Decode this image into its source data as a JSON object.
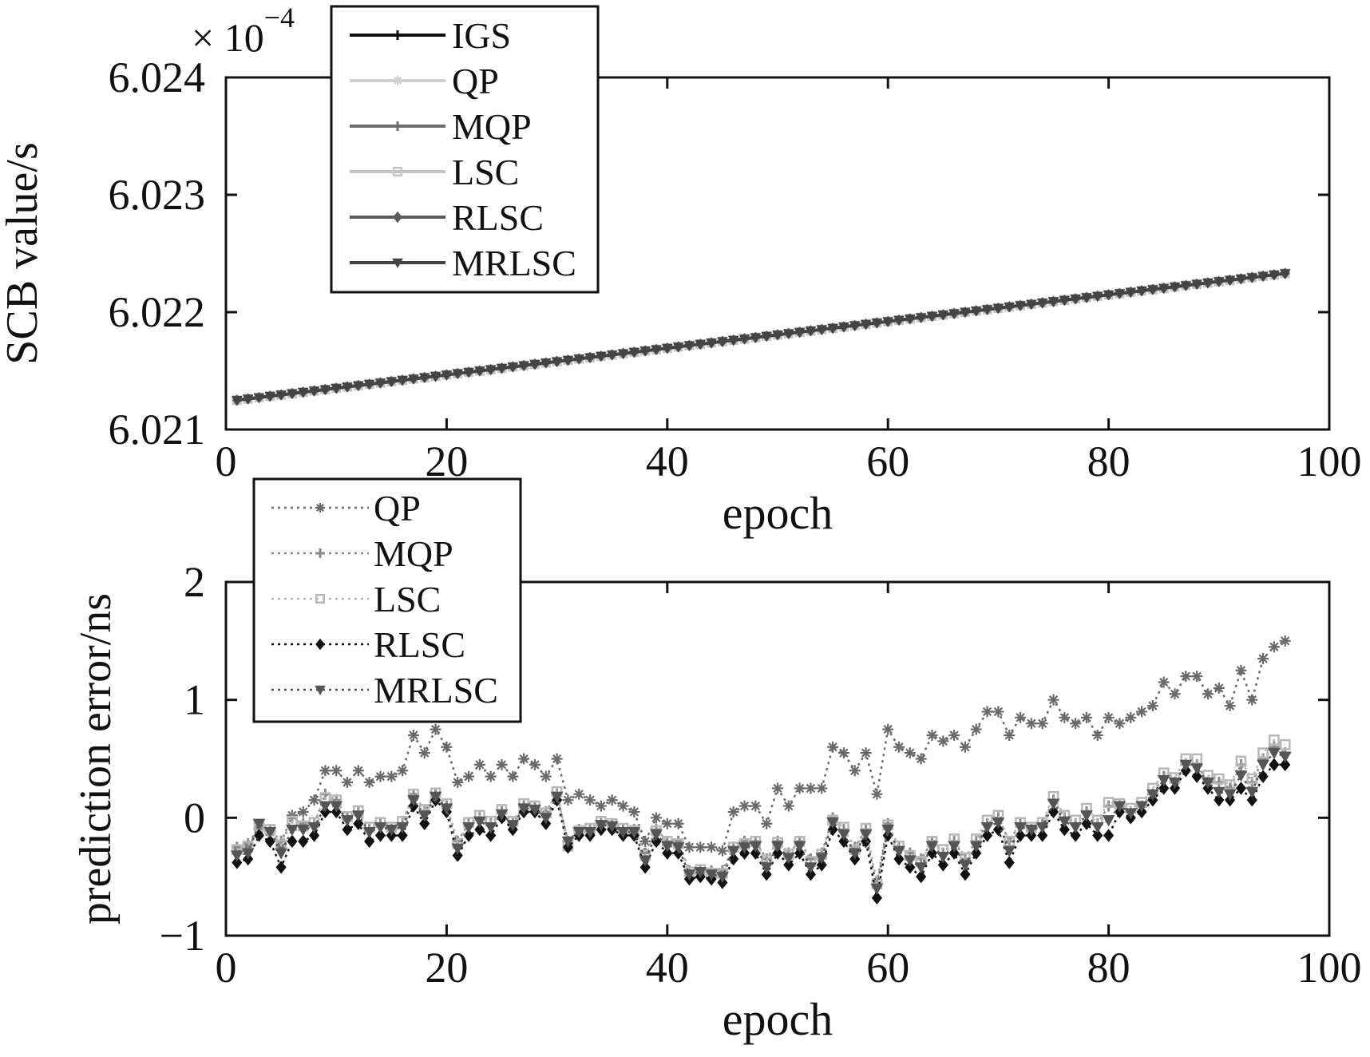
{
  "chart_data": [
    {
      "type": "line",
      "xlabel": "epoch",
      "ylabel": "SCB value/s",
      "exponent": {
        "base": "× 10",
        "power": "−4"
      },
      "xlim": [
        0,
        100
      ],
      "ylim": [
        6.021,
        6.024
      ],
      "xticks": [
        "0",
        "20",
        "40",
        "60",
        "80",
        "100"
      ],
      "yticks": [
        "6.021",
        "6.022",
        "6.023",
        "6.024"
      ],
      "grid": false,
      "legend_position": "top-left",
      "x": [
        1,
        96
      ],
      "series": [
        {
          "name": "IGS",
          "color": "#111111",
          "marker": "plus",
          "values": [
            6.02125,
            6.02233
          ]
        },
        {
          "name": "QP",
          "color": "#cfcfcf",
          "marker": "star",
          "values": [
            6.02125,
            6.02233
          ]
        },
        {
          "name": "MQP",
          "color": "#6e6e6e",
          "marker": "plus",
          "values": [
            6.02125,
            6.02233
          ]
        },
        {
          "name": "LSC",
          "color": "#c4c4c4",
          "marker": "square",
          "values": [
            6.02125,
            6.02233
          ]
        },
        {
          "name": "RLSC",
          "color": "#5a5a5a",
          "marker": "diamond",
          "values": [
            6.02125,
            6.02233
          ]
        },
        {
          "name": "MRLSC",
          "color": "#444444",
          "marker": "triangle",
          "values": [
            6.02125,
            6.02233
          ]
        }
      ]
    },
    {
      "type": "line",
      "xlabel": "epoch",
      "ylabel": "prediction error/ns",
      "xlim": [
        0,
        100
      ],
      "ylim": [
        -1,
        2
      ],
      "xticks": [
        "0",
        "20",
        "40",
        "60",
        "80",
        "100"
      ],
      "yticks": [
        "−1",
        "0",
        "1",
        "2"
      ],
      "grid": false,
      "legend_position": "top-left",
      "x": [
        1,
        2,
        3,
        4,
        5,
        6,
        7,
        8,
        9,
        10,
        11,
        12,
        13,
        14,
        15,
        16,
        17,
        18,
        19,
        20,
        21,
        22,
        23,
        24,
        25,
        26,
        27,
        28,
        29,
        30,
        31,
        32,
        33,
        34,
        35,
        36,
        37,
        38,
        39,
        40,
        41,
        42,
        43,
        44,
        45,
        46,
        47,
        48,
        49,
        50,
        51,
        52,
        53,
        54,
        55,
        56,
        57,
        58,
        59,
        60,
        61,
        62,
        63,
        64,
        65,
        66,
        67,
        68,
        69,
        70,
        71,
        72,
        73,
        74,
        75,
        76,
        77,
        78,
        79,
        80,
        81,
        82,
        83,
        84,
        85,
        86,
        87,
        88,
        89,
        90,
        91,
        92,
        93,
        94,
        95,
        96
      ],
      "series": [
        {
          "name": "QP",
          "color": "#6a6a6a",
          "marker": "star",
          "values": [
            -0.28,
            -0.25,
            -0.1,
            -0.12,
            -0.25,
            0.02,
            0.05,
            0.15,
            0.4,
            0.4,
            0.3,
            0.4,
            0.3,
            0.35,
            0.35,
            0.4,
            0.7,
            0.55,
            0.75,
            0.6,
            0.3,
            0.35,
            0.45,
            0.35,
            0.45,
            0.35,
            0.5,
            0.45,
            0.35,
            0.5,
            0.15,
            0.2,
            0.15,
            0.1,
            0.15,
            0.1,
            0.05,
            -0.2,
            0.0,
            -0.05,
            -0.05,
            -0.25,
            -0.25,
            -0.25,
            -0.28,
            0.05,
            0.1,
            0.1,
            -0.05,
            0.25,
            0.1,
            0.25,
            0.25,
            0.25,
            0.6,
            0.55,
            0.4,
            0.55,
            0.2,
            0.75,
            0.6,
            0.55,
            0.5,
            0.7,
            0.65,
            0.7,
            0.6,
            0.75,
            0.9,
            0.9,
            0.7,
            0.85,
            0.8,
            0.8,
            1.0,
            0.85,
            0.8,
            0.85,
            0.7,
            0.85,
            0.8,
            0.85,
            0.9,
            0.95,
            1.15,
            1.05,
            1.2,
            1.2,
            1.05,
            1.1,
            0.95,
            1.25,
            1.0,
            1.35,
            1.45,
            1.5
          ]
        },
        {
          "name": "MQP",
          "color": "#8a8a8a",
          "marker": "plus",
          "values": [
            -0.25,
            -0.22,
            -0.08,
            -0.1,
            -0.2,
            0.0,
            -0.05,
            -0.05,
            0.2,
            0.15,
            0.0,
            0.05,
            -0.1,
            -0.05,
            -0.1,
            -0.05,
            0.2,
            0.05,
            0.2,
            0.1,
            -0.2,
            -0.05,
            0.0,
            -0.05,
            0.05,
            -0.05,
            0.1,
            0.1,
            0.05,
            0.2,
            -0.2,
            -0.1,
            -0.1,
            -0.05,
            -0.05,
            -0.1,
            -0.1,
            -0.3,
            -0.1,
            -0.2,
            -0.2,
            -0.45,
            -0.45,
            -0.45,
            -0.45,
            -0.25,
            -0.2,
            -0.2,
            -0.35,
            -0.2,
            -0.3,
            -0.2,
            -0.35,
            -0.3,
            0.0,
            -0.1,
            -0.25,
            -0.1,
            -0.55,
            -0.05,
            -0.25,
            -0.3,
            -0.35,
            -0.2,
            -0.3,
            -0.2,
            -0.35,
            -0.2,
            -0.05,
            0.0,
            -0.2,
            -0.05,
            -0.1,
            -0.05,
            0.15,
            0.0,
            -0.05,
            0.05,
            -0.05,
            0.1,
            0.1,
            0.05,
            0.1,
            0.2,
            0.35,
            0.3,
            0.45,
            0.45,
            0.3,
            0.3,
            0.25,
            0.45,
            0.3,
            0.5,
            0.6,
            0.55
          ]
        },
        {
          "name": "LSC",
          "color": "#b8b8b8",
          "marker": "square",
          "values": [
            -0.27,
            -0.24,
            -0.07,
            -0.1,
            -0.23,
            -0.03,
            -0.07,
            -0.04,
            0.17,
            0.15,
            0.01,
            0.06,
            -0.08,
            -0.04,
            -0.08,
            -0.03,
            0.2,
            0.07,
            0.21,
            0.12,
            -0.22,
            -0.04,
            0.02,
            -0.03,
            0.07,
            -0.03,
            0.12,
            0.1,
            0.04,
            0.22,
            -0.24,
            -0.11,
            -0.09,
            -0.03,
            -0.05,
            -0.09,
            -0.11,
            -0.32,
            -0.11,
            -0.2,
            -0.22,
            -0.46,
            -0.44,
            -0.47,
            -0.47,
            -0.25,
            -0.22,
            -0.2,
            -0.36,
            -0.21,
            -0.31,
            -0.2,
            -0.37,
            -0.31,
            -0.02,
            -0.08,
            -0.27,
            -0.09,
            -0.56,
            -0.06,
            -0.24,
            -0.32,
            -0.37,
            -0.2,
            -0.27,
            -0.18,
            -0.34,
            -0.18,
            -0.02,
            0.02,
            -0.2,
            -0.04,
            -0.08,
            -0.04,
            0.18,
            0.02,
            -0.02,
            0.08,
            -0.02,
            0.13,
            0.12,
            0.08,
            0.13,
            0.25,
            0.38,
            0.34,
            0.5,
            0.5,
            0.36,
            0.33,
            0.28,
            0.48,
            0.33,
            0.55,
            0.66,
            0.62
          ]
        },
        {
          "name": "RLSC",
          "color": "#111111",
          "marker": "diamond",
          "values": [
            -0.38,
            -0.35,
            -0.15,
            -0.2,
            -0.42,
            -0.2,
            -0.2,
            -0.15,
            0.05,
            0.05,
            -0.1,
            -0.05,
            -0.2,
            -0.15,
            -0.15,
            -0.15,
            0.1,
            -0.05,
            0.15,
            0.05,
            -0.32,
            -0.15,
            -0.1,
            -0.15,
            0.0,
            -0.1,
            0.05,
            0.05,
            -0.05,
            0.15,
            -0.25,
            -0.15,
            -0.15,
            -0.1,
            -0.1,
            -0.15,
            -0.15,
            -0.42,
            -0.2,
            -0.3,
            -0.3,
            -0.52,
            -0.5,
            -0.52,
            -0.55,
            -0.35,
            -0.3,
            -0.3,
            -0.48,
            -0.3,
            -0.4,
            -0.3,
            -0.48,
            -0.4,
            -0.1,
            -0.2,
            -0.35,
            -0.2,
            -0.68,
            -0.15,
            -0.35,
            -0.42,
            -0.5,
            -0.3,
            -0.4,
            -0.3,
            -0.48,
            -0.3,
            -0.15,
            -0.1,
            -0.38,
            -0.15,
            -0.15,
            -0.15,
            0.05,
            -0.1,
            -0.15,
            -0.05,
            -0.15,
            -0.15,
            0.05,
            0.0,
            0.05,
            0.15,
            0.25,
            0.25,
            0.4,
            0.35,
            0.25,
            0.15,
            0.15,
            0.25,
            0.15,
            0.35,
            0.45,
            0.45
          ]
        },
        {
          "name": "MRLSC",
          "color": "#555555",
          "marker": "triangle",
          "values": [
            -0.32,
            -0.3,
            -0.05,
            -0.12,
            -0.3,
            -0.1,
            -0.1,
            -0.08,
            0.1,
            0.1,
            -0.02,
            0.02,
            -0.12,
            -0.08,
            -0.1,
            -0.08,
            0.15,
            0.02,
            0.18,
            0.08,
            -0.26,
            -0.08,
            -0.03,
            -0.08,
            0.03,
            -0.06,
            0.08,
            0.07,
            0.0,
            0.18,
            -0.2,
            -0.12,
            -0.12,
            -0.06,
            -0.07,
            -0.12,
            -0.12,
            -0.36,
            -0.14,
            -0.24,
            -0.25,
            -0.48,
            -0.46,
            -0.48,
            -0.5,
            -0.28,
            -0.25,
            -0.24,
            -0.42,
            -0.24,
            -0.34,
            -0.24,
            -0.42,
            -0.34,
            -0.04,
            -0.14,
            -0.3,
            -0.14,
            -0.6,
            -0.1,
            -0.28,
            -0.36,
            -0.42,
            -0.24,
            -0.33,
            -0.24,
            -0.4,
            -0.24,
            -0.08,
            -0.04,
            -0.28,
            -0.08,
            -0.1,
            -0.08,
            0.12,
            -0.03,
            -0.08,
            0.02,
            -0.08,
            -0.02,
            0.1,
            0.04,
            0.1,
            0.2,
            0.32,
            0.3,
            0.45,
            0.42,
            0.3,
            0.22,
            0.2,
            0.36,
            0.22,
            0.45,
            0.55,
            0.52
          ]
        }
      ]
    }
  ]
}
